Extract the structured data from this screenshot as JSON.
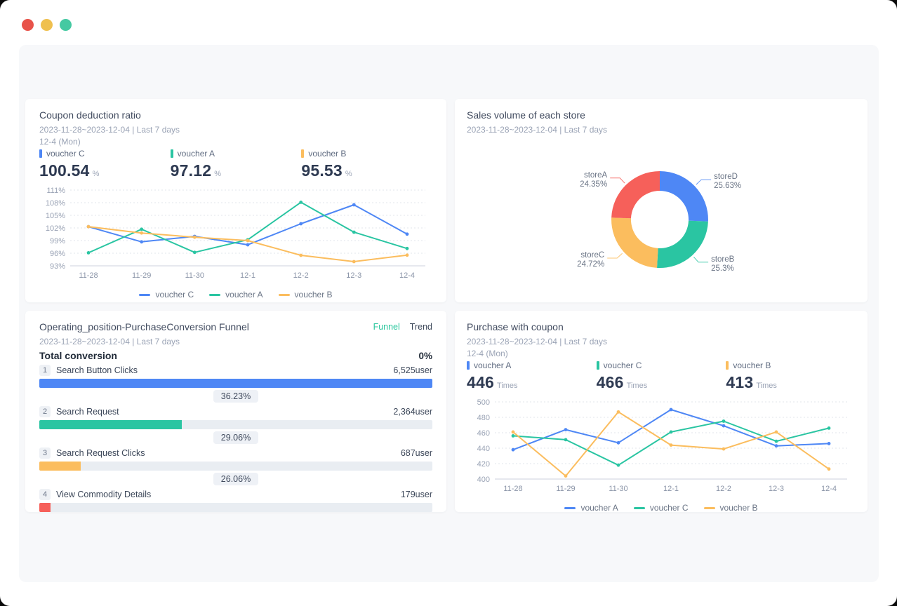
{
  "window": {
    "traffic_lights": [
      {
        "name": "close",
        "color": "#e8534a"
      },
      {
        "name": "minimize",
        "color": "#efc04f"
      },
      {
        "name": "zoom",
        "color": "#45c9a2"
      }
    ]
  },
  "theme": {
    "blue": "#4E87F5",
    "teal": "#2AC5A2",
    "orange": "#FBBD5E",
    "red": "#F6605A",
    "page_bg": "#f7f8fa",
    "panel_bg": "#ffffff"
  },
  "panels": {
    "coupon_ratio": {
      "title": "Coupon deduction ratio",
      "date_range": "2023-11-28~2023-12-04 | Last 7 days",
      "current_point": "12-4 (Mon)",
      "kpis": [
        {
          "label": "voucher C",
          "value": "100.54",
          "unit": "%",
          "color": "#4E87F5"
        },
        {
          "label": "voucher A",
          "value": "97.12",
          "unit": "%",
          "color": "#2AC5A2"
        },
        {
          "label": "voucher B",
          "value": "95.53",
          "unit": "%",
          "color": "#FBBD5E"
        }
      ]
    },
    "store_sales": {
      "title": "Sales volume of each store",
      "date_range": "2023-11-28~2023-12-04 | Last 7 days"
    },
    "funnel": {
      "title": "Operating_position-PurchaseConversion Funnel",
      "tabs": [
        {
          "label": "Funnel",
          "active": true
        },
        {
          "label": "Trend",
          "active": false
        }
      ],
      "date_range": "2023-11-28~2023-12-04 | Last 7 days",
      "total_label": "Total conversion",
      "total_value": "0%",
      "steps": [
        {
          "index": "1",
          "label": "Search Button Clicks",
          "value_label": "6,525user",
          "bar_pct": 100,
          "color": "#4E87F5",
          "conversion_to_next": "36.23%"
        },
        {
          "index": "2",
          "label": "Search Request",
          "value_label": "2,364user",
          "bar_pct": 36.2,
          "color": "#2AC5A2",
          "conversion_to_next": "29.06%"
        },
        {
          "index": "3",
          "label": "Search Request Clicks",
          "value_label": "687user",
          "bar_pct": 10.5,
          "color": "#FBBD5E",
          "conversion_to_next": "26.06%"
        },
        {
          "index": "4",
          "label": "View Commodity Details",
          "value_label": "179user",
          "bar_pct": 2.8,
          "color": "#F6605A",
          "conversion_to_next": null
        }
      ]
    },
    "purchase_coupon": {
      "title": "Purchase with coupon",
      "date_range": "2023-11-28~2023-12-04 | Last 7 days",
      "current_point": "12-4 (Mon)",
      "kpis": [
        {
          "label": "voucher A",
          "value": "446",
          "unit": "Times",
          "color": "#4E87F5"
        },
        {
          "label": "voucher C",
          "value": "466",
          "unit": "Times",
          "color": "#2AC5A2"
        },
        {
          "label": "voucher B",
          "value": "413",
          "unit": "Times",
          "color": "#FBBD5E"
        }
      ]
    }
  },
  "chart_data": [
    {
      "id": "coupon-deduction-lines",
      "type": "line",
      "title": "Coupon deduction ratio",
      "x": [
        "11-28",
        "11-29",
        "11-30",
        "12-1",
        "12-2",
        "12-3",
        "12-4"
      ],
      "series": [
        {
          "name": "voucher C",
          "color": "#4E87F5",
          "values": [
            102.3,
            98.7,
            100.0,
            98.0,
            103.0,
            107.5,
            100.54
          ]
        },
        {
          "name": "voucher A",
          "color": "#2AC5A2",
          "values": [
            96.1,
            101.7,
            96.2,
            99.2,
            108.1,
            101.0,
            97.12
          ]
        },
        {
          "name": "voucher B",
          "color": "#FBBD5E",
          "values": [
            102.3,
            100.8,
            99.8,
            99.0,
            95.5,
            94.0,
            95.53
          ]
        }
      ],
      "ylim": [
        93,
        111
      ],
      "ystep": 3,
      "y_suffix": "%",
      "grid": "dotted",
      "legend_position": "bottom"
    },
    {
      "id": "store-sales-donut",
      "type": "pie",
      "title": "Sales volume of each store",
      "donut": true,
      "start_angle": "top",
      "direction": "clockwise",
      "slices": [
        {
          "name": "storeD",
          "pct": 25.63,
          "color": "#4E87F5"
        },
        {
          "name": "storeB",
          "pct": 25.3,
          "color": "#2AC5A2"
        },
        {
          "name": "storeC",
          "pct": 24.72,
          "color": "#FBBD5E"
        },
        {
          "name": "storeA",
          "pct": 24.35,
          "color": "#F6605A"
        }
      ]
    },
    {
      "id": "purchase-conversion-funnel",
      "type": "bar",
      "title": "Operating_position-PurchaseConversion Funnel",
      "categories": [
        "Search Button Clicks",
        "Search Request",
        "Search Request Clicks",
        "View Commodity Details"
      ],
      "values": [
        6525,
        2364,
        687,
        179
      ],
      "value_labels": [
        "6,525user",
        "2,364user",
        "687user",
        "179user"
      ],
      "conversion_rates": [
        "36.23%",
        "29.06%",
        "26.06%"
      ],
      "colors": [
        "#4E87F5",
        "#2AC5A2",
        "#FBBD5E",
        "#F6605A"
      ],
      "total_conversion": "0%"
    },
    {
      "id": "purchase-with-coupon-lines",
      "type": "line",
      "title": "Purchase with coupon",
      "x": [
        "11-28",
        "11-29",
        "11-30",
        "12-1",
        "12-2",
        "12-3",
        "12-4"
      ],
      "series": [
        {
          "name": "voucher A",
          "color": "#4E87F5",
          "values": [
            438,
            464,
            447,
            490,
            469,
            443,
            446
          ]
        },
        {
          "name": "voucher C",
          "color": "#2AC5A2",
          "values": [
            456,
            451,
            418,
            461,
            475,
            449,
            466
          ]
        },
        {
          "name": "voucher B",
          "color": "#FBBD5E",
          "values": [
            461,
            404,
            487,
            444,
            439,
            461,
            413
          ]
        }
      ],
      "ylim": [
        400,
        500
      ],
      "ystep": 20,
      "y_suffix": "",
      "grid": "dotted",
      "legend_position": "bottom"
    }
  ]
}
